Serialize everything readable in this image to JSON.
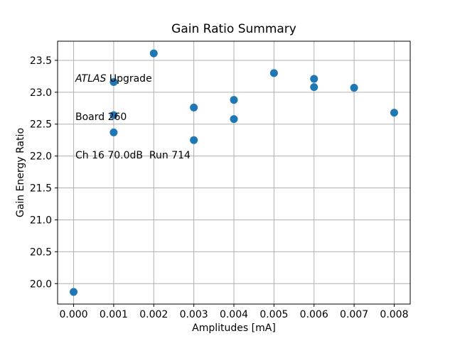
{
  "figure": {
    "background": "#ffffff"
  },
  "annotation": {
    "line1_italic": "ATLAS",
    "line1_rest": " Upgrade",
    "line2": "Board 260",
    "line3": "Ch 16 70.0dB  Run 714"
  },
  "chart_data": {
    "type": "scatter",
    "title": "Gain Ratio Summary",
    "xlabel": "Amplitudes [mA]",
    "ylabel": "Gain Energy Ratio",
    "xlim": [
      -0.0004,
      0.0084
    ],
    "ylim": [
      19.68,
      23.8
    ],
    "grid": true,
    "legend": "none",
    "grid_color": "#b0b0b0",
    "frame_color": "#000000",
    "marker_color": "#1f77b4",
    "marker_radius": 5.5,
    "x_ticks": [
      0.0,
      0.001,
      0.002,
      0.003,
      0.004,
      0.005,
      0.006,
      0.007,
      0.008
    ],
    "x_tick_labels": [
      "0.000",
      "0.001",
      "0.002",
      "0.003",
      "0.004",
      "0.005",
      "0.006",
      "0.007",
      "0.008"
    ],
    "y_ticks": [
      20.0,
      20.5,
      21.0,
      21.5,
      22.0,
      22.5,
      23.0,
      23.5
    ],
    "y_tick_labels": [
      "20.0",
      "20.5",
      "21.0",
      "21.5",
      "22.0",
      "22.5",
      "23.0",
      "23.5"
    ],
    "points": [
      [
        0.0,
        19.87
      ],
      [
        0.001,
        23.16
      ],
      [
        0.001,
        22.64
      ],
      [
        0.001,
        22.37
      ],
      [
        0.002,
        23.61
      ],
      [
        0.003,
        22.76
      ],
      [
        0.003,
        22.25
      ],
      [
        0.004,
        22.88
      ],
      [
        0.004,
        22.58
      ],
      [
        0.005,
        23.3
      ],
      [
        0.006,
        23.21
      ],
      [
        0.006,
        23.08
      ],
      [
        0.007,
        23.07
      ],
      [
        0.008,
        22.68
      ]
    ]
  }
}
